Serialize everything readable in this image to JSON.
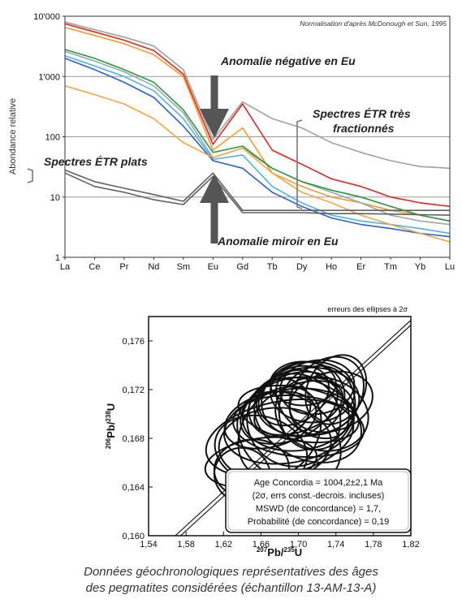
{
  "chart_data": [
    {
      "type": "line",
      "ylabel": "Abondance relative",
      "yscale": "log",
      "ylim": [
        1,
        10000
      ],
      "yticks": [
        {
          "v": 1,
          "label": "1"
        },
        {
          "v": 10,
          "label": "10"
        },
        {
          "v": 100,
          "label": "100"
        },
        {
          "v": 1000,
          "label": "1'000"
        },
        {
          "v": 10000,
          "label": "10'000"
        }
      ],
      "grid": true,
      "categories": [
        "La",
        "Ce",
        "Pr",
        "Nd",
        "Sm",
        "Eu",
        "Gd",
        "Tb",
        "Dy",
        "Ho",
        "Er",
        "Tm",
        "Yb",
        "Lu"
      ],
      "note": "Normalisation d'après McDonough et Sun, 1995",
      "series": [
        {
          "color": "#a0a0a0",
          "values": [
            8000,
            6000,
            4500,
            3200,
            1300,
            90,
            380,
            200,
            140,
            80,
            55,
            40,
            32,
            30
          ]
        },
        {
          "color": "#e2261e",
          "values": [
            7500,
            5500,
            4000,
            2700,
            1100,
            75,
            350,
            60,
            35,
            20,
            15,
            10,
            8,
            7
          ]
        },
        {
          "color": "#f59a2b",
          "values": [
            6500,
            4800,
            3500,
            2300,
            1000,
            60,
            140,
            25,
            15,
            10,
            8,
            6,
            5,
            4
          ]
        },
        {
          "color": "#9aa6a6",
          "values": [
            2600,
            1800,
            1200,
            700,
            250,
            45,
            65,
            30,
            18,
            12,
            8,
            5,
            4,
            3.5
          ]
        },
        {
          "color": "#29993b",
          "values": [
            2800,
            2000,
            1300,
            800,
            280,
            55,
            70,
            30,
            18,
            13,
            10,
            7,
            5,
            4
          ]
        },
        {
          "color": "#4fb3e3",
          "values": [
            2200,
            1500,
            1000,
            580,
            200,
            42,
            50,
            15,
            8,
            5,
            4,
            3.5,
            3,
            2.5
          ]
        },
        {
          "color": "#2d5fd6",
          "values": [
            2000,
            1300,
            800,
            450,
            150,
            40,
            30,
            12,
            7,
            4.5,
            3.5,
            3,
            2.5,
            2.2
          ]
        },
        {
          "color": "#f5a640",
          "values": [
            700,
            500,
            350,
            200,
            80,
            45,
            65,
            25,
            12,
            8,
            5,
            3.5,
            2.5,
            1.8
          ]
        },
        {
          "color": "#606060",
          "values": [
            28,
            18,
            14,
            11,
            8.5,
            25,
            6,
            6,
            6,
            6,
            6,
            6,
            6,
            6
          ]
        },
        {
          "color": "#606060",
          "values": [
            25,
            15,
            12,
            9,
            7.5,
            22,
            5.5,
            5.5,
            5.5,
            5.3,
            5.3,
            5.2,
            5.1,
            5.0
          ]
        }
      ],
      "annotations": [
        "Anomalie négative en Eu",
        "Spectres ÉTR très fractionnés",
        "Spectres ÉTR plats",
        "Anomalie miroir en Eu"
      ]
    },
    {
      "type": "scatter",
      "title": "erreurs des ellipses à 2σ",
      "xlim": [
        1.54,
        1.82
      ],
      "ylim": [
        0.16,
        0.178
      ],
      "xticks": [
        "1,54",
        "1,58",
        "1,62",
        "1,66",
        "1,70",
        "1,74",
        "1,78",
        "1,82"
      ],
      "xtick_values": [
        1.54,
        1.58,
        1.62,
        1.66,
        1.7,
        1.74,
        1.78,
        1.82
      ],
      "yticks": [
        "0,160",
        "0,164",
        "0,168",
        "0,172",
        "0,176"
      ],
      "ytick_values": [
        0.16,
        0.164,
        0.168,
        0.172,
        0.176
      ],
      "xlabel_sup": "207",
      "xlabel_main": "Pb/",
      "xlabel_sup2": "235",
      "xlabel_end": "U",
      "ylabel_sup": "206",
      "ylabel_main": "Pb/",
      "ylabel_sup2": "238",
      "ylabel_end": "U",
      "concordia": [
        [
          1.55,
          0.1585
        ],
        [
          1.82,
          0.1775
        ]
      ],
      "ellipses": [
        {
          "x": 1.7,
          "y": 0.17,
          "rx": 0.06,
          "ry": 0.003,
          "a": -8
        },
        {
          "x": 1.69,
          "y": 0.169,
          "rx": 0.07,
          "ry": 0.003,
          "a": -10
        },
        {
          "x": 1.71,
          "y": 0.171,
          "rx": 0.055,
          "ry": 0.0028,
          "a": -5
        },
        {
          "x": 1.68,
          "y": 0.168,
          "rx": 0.08,
          "ry": 0.003,
          "a": -12
        },
        {
          "x": 1.72,
          "y": 0.1705,
          "rx": 0.04,
          "ry": 0.0035,
          "a": 20
        },
        {
          "x": 1.695,
          "y": 0.1695,
          "rx": 0.05,
          "ry": 0.0038,
          "a": 30
        },
        {
          "x": 1.705,
          "y": 0.1712,
          "rx": 0.045,
          "ry": 0.003,
          "a": -20
        },
        {
          "x": 1.7,
          "y": 0.17,
          "rx": 0.065,
          "ry": 0.0022,
          "a": 10
        },
        {
          "x": 1.675,
          "y": 0.1675,
          "rx": 0.06,
          "ry": 0.003,
          "a": -5
        },
        {
          "x": 1.715,
          "y": 0.1718,
          "rx": 0.045,
          "ry": 0.0025,
          "a": 0
        },
        {
          "x": 1.73,
          "y": 0.1715,
          "rx": 0.035,
          "ry": 0.0035,
          "a": 40
        },
        {
          "x": 1.69,
          "y": 0.1705,
          "rx": 0.055,
          "ry": 0.0026,
          "a": -25
        },
        {
          "x": 1.66,
          "y": 0.167,
          "rx": 0.05,
          "ry": 0.0028,
          "a": 15
        },
        {
          "x": 1.68,
          "y": 0.1685,
          "rx": 0.04,
          "ry": 0.004,
          "a": 35
        },
        {
          "x": 1.72,
          "y": 0.1722,
          "rx": 0.04,
          "ry": 0.0022,
          "a": -10
        },
        {
          "x": 1.7,
          "y": 0.169,
          "rx": 0.07,
          "ry": 0.0025,
          "a": 5
        },
        {
          "x": 1.65,
          "y": 0.1655,
          "rx": 0.04,
          "ry": 0.0024,
          "a": -5
        },
        {
          "x": 1.64,
          "y": 0.165,
          "rx": 0.03,
          "ry": 0.0022,
          "a": 20
        },
        {
          "x": 1.71,
          "y": 0.1695,
          "rx": 0.06,
          "ry": 0.0032,
          "a": 25
        },
        {
          "x": 1.695,
          "y": 0.1715,
          "rx": 0.04,
          "ry": 0.0022,
          "a": -30
        },
        {
          "x": 1.725,
          "y": 0.17,
          "rx": 0.05,
          "ry": 0.003,
          "a": 12
        },
        {
          "x": 1.67,
          "y": 0.1695,
          "rx": 0.05,
          "ry": 0.0022,
          "a": -15
        },
        {
          "x": 1.705,
          "y": 0.1725,
          "rx": 0.035,
          "ry": 0.0018,
          "a": 0
        },
        {
          "x": 1.69,
          "y": 0.168,
          "rx": 0.06,
          "ry": 0.0034,
          "a": 35
        },
        {
          "x": 1.74,
          "y": 0.172,
          "rx": 0.03,
          "ry": 0.003,
          "a": 30
        },
        {
          "x": 1.68,
          "y": 0.1705,
          "rx": 0.03,
          "ry": 0.0026,
          "a": 60
        },
        {
          "x": 1.715,
          "y": 0.1708,
          "rx": 0.03,
          "ry": 0.0034,
          "a": -50
        },
        {
          "x": 1.7,
          "y": 0.1705,
          "rx": 0.025,
          "ry": 0.0038,
          "a": 70
        },
        {
          "x": 1.66,
          "y": 0.166,
          "rx": 0.06,
          "ry": 0.002,
          "a": -8
        },
        {
          "x": 1.735,
          "y": 0.171,
          "rx": 0.045,
          "ry": 0.0024,
          "a": -15
        }
      ],
      "info_box": [
        "Age Concordia = 1004,2±2,1 Ma",
        "(2σ, errs const.-decrois. incluses)",
        "MSWD (de concordance) = 1,7,",
        "Probabilité (de concordance) = 0,19"
      ]
    }
  ],
  "caption": {
    "line1": "Données géochronologiques représentatives des âges",
    "line2": "des pegmatites considérées (échantillon 13-AM-13-A)"
  }
}
